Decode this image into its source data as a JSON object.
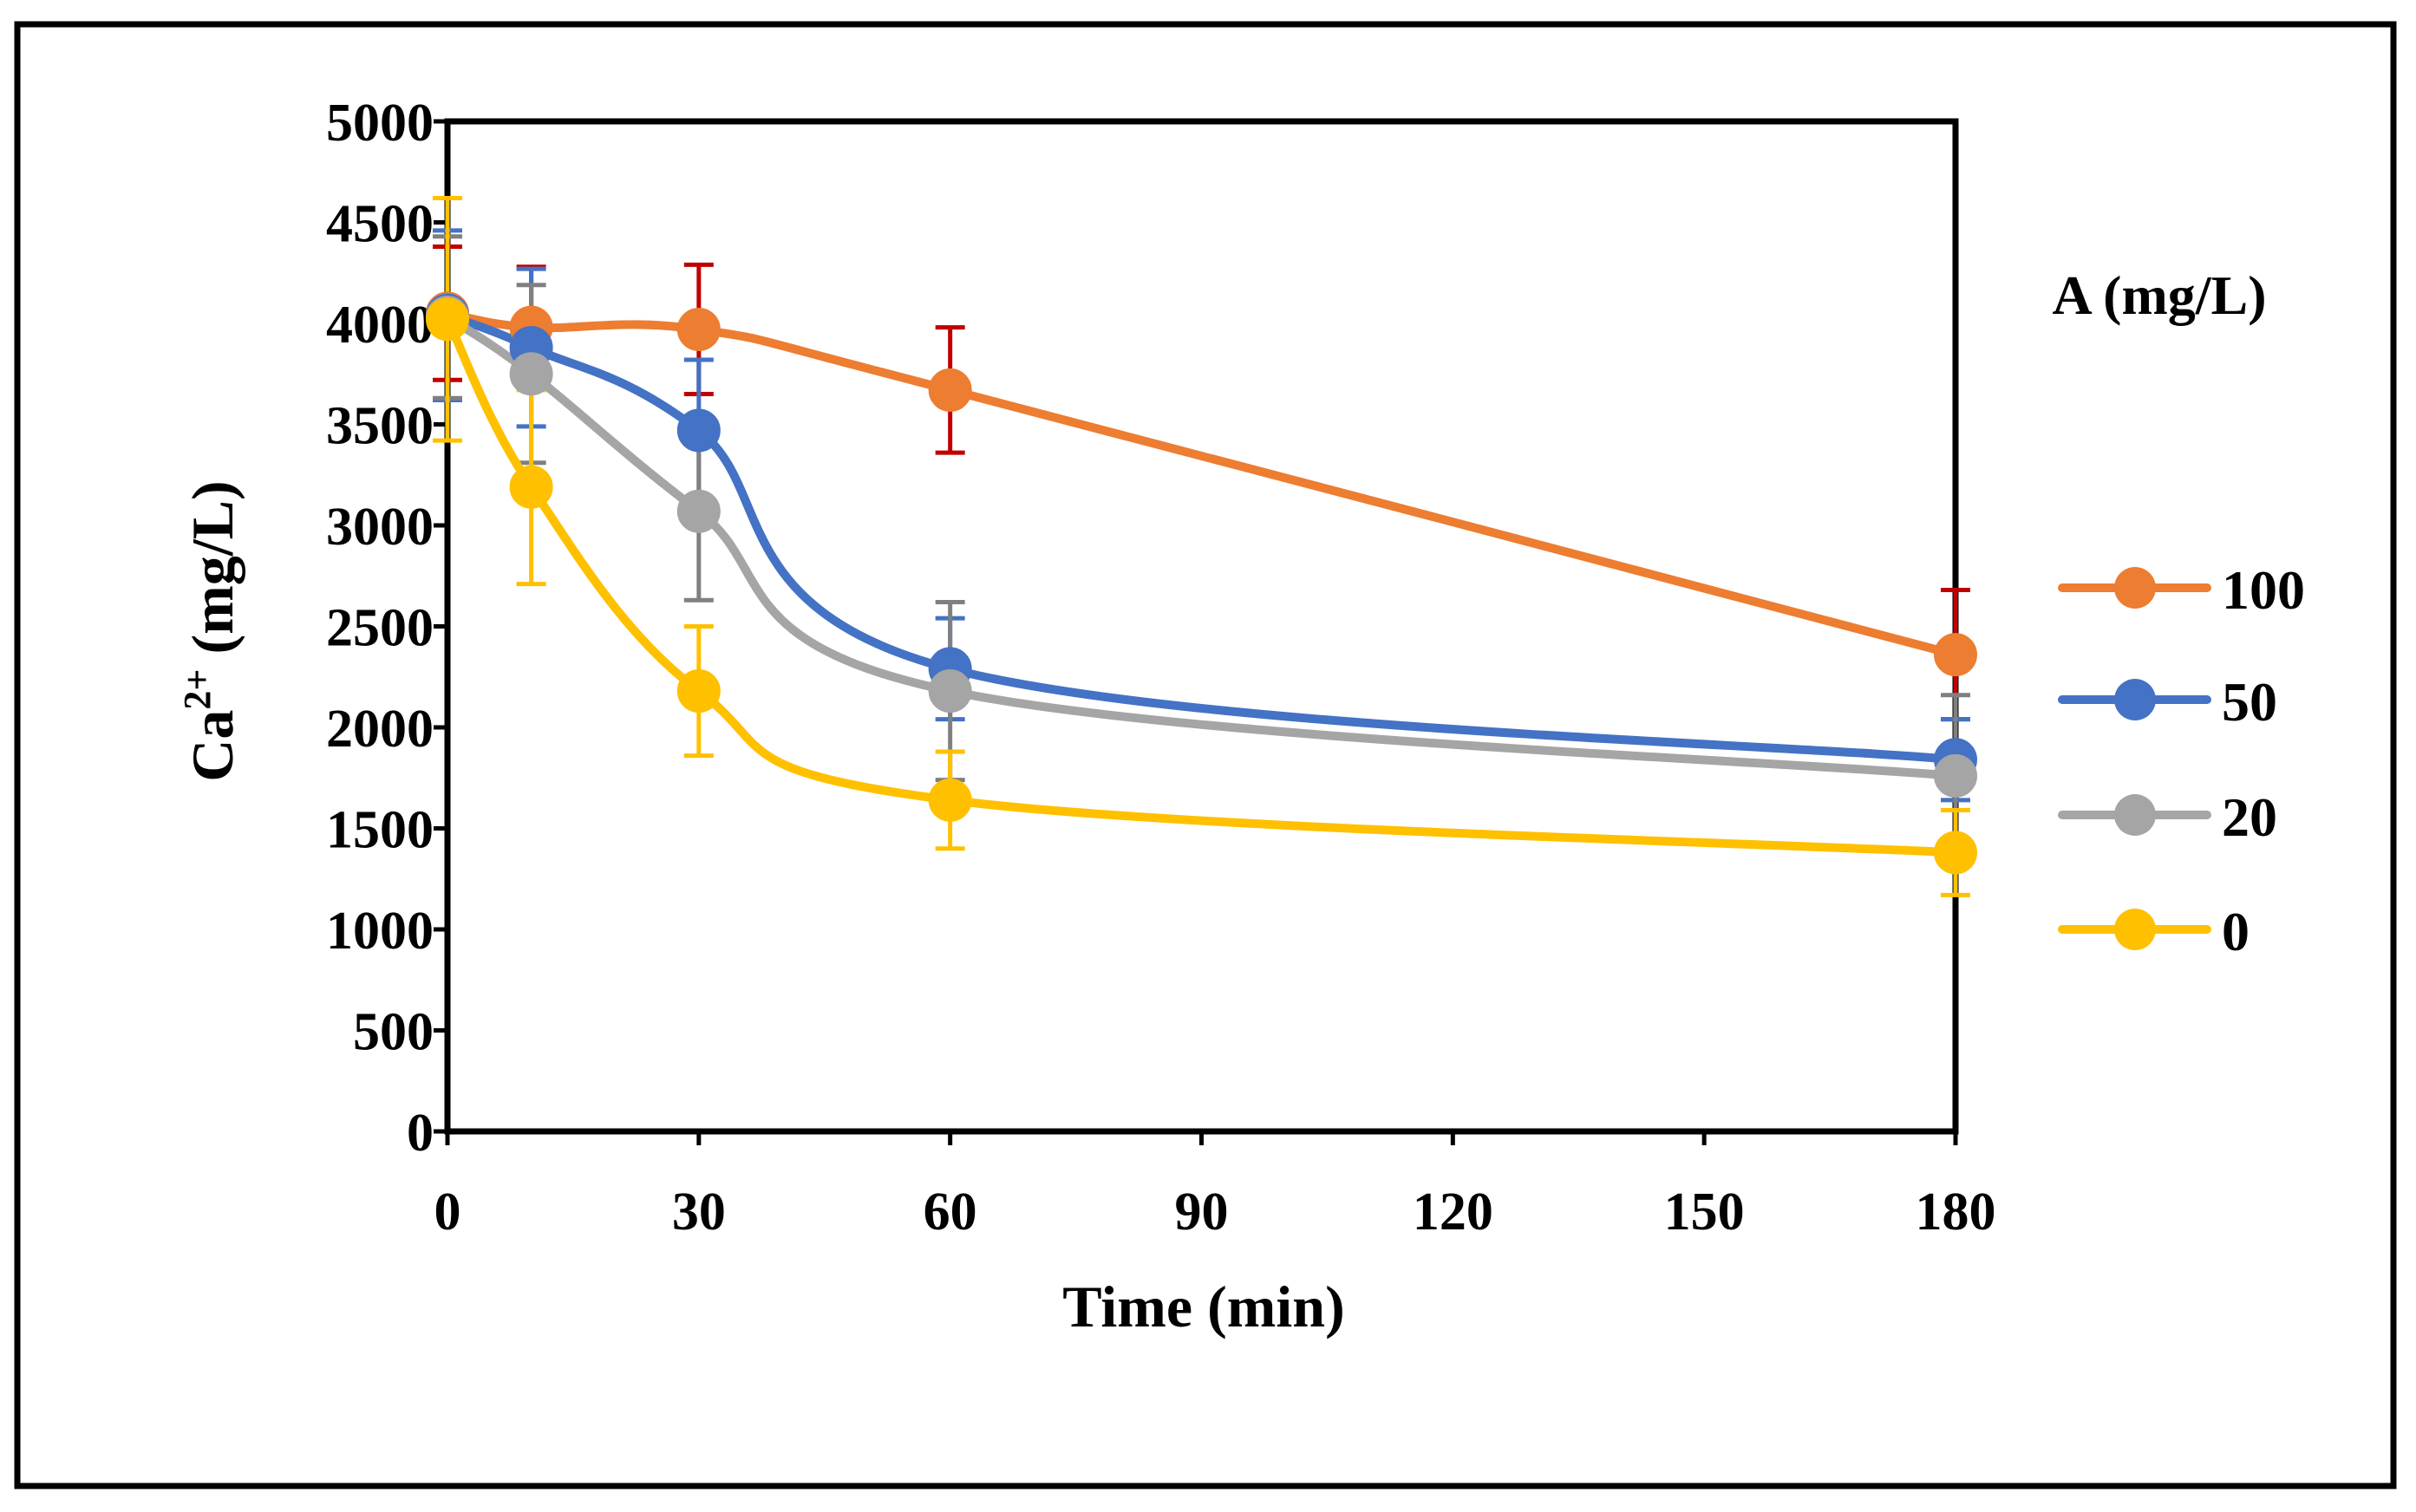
{
  "chart_data": {
    "type": "line",
    "xlabel": "Time (min)",
    "ylabel": {
      "base": "Ca",
      "sup": "2+",
      "rest": " (mg/L)"
    },
    "xlim": [
      0,
      180
    ],
    "ylim": [
      0,
      5000
    ],
    "xticks": [
      0,
      30,
      60,
      90,
      120,
      150,
      180
    ],
    "yticks": [
      0,
      500,
      1000,
      1500,
      2000,
      2500,
      3000,
      3500,
      4000,
      4500,
      5000
    ],
    "grid": false,
    "legend_title": "A (mg/L)",
    "legend_position": "right",
    "x": [
      0,
      10,
      30,
      60,
      180
    ],
    "series": [
      {
        "name": "100",
        "color": "#ED7D31",
        "error_color": "#C00000",
        "values": [
          4050,
          3980,
          3970,
          3670,
          2360
        ],
        "errors": [
          330,
          300,
          320,
          310,
          320
        ]
      },
      {
        "name": "50",
        "color": "#4472C4",
        "error_color": "#4472C4",
        "values": [
          4040,
          3880,
          3470,
          2290,
          1840
        ],
        "errors": [
          420,
          390,
          350,
          250,
          200
        ]
      },
      {
        "name": "20",
        "color": "#A5A5A5",
        "error_color": "#808080",
        "values": [
          4030,
          3750,
          3070,
          2180,
          1760
        ],
        "errors": [
          400,
          440,
          440,
          440,
          400
        ]
      },
      {
        "name": "0",
        "color": "#FFC000",
        "error_color": "#FFC000",
        "values": [
          4020,
          3190,
          2180,
          1640,
          1380
        ],
        "errors": [
          600,
          480,
          320,
          240,
          210
        ]
      }
    ]
  }
}
